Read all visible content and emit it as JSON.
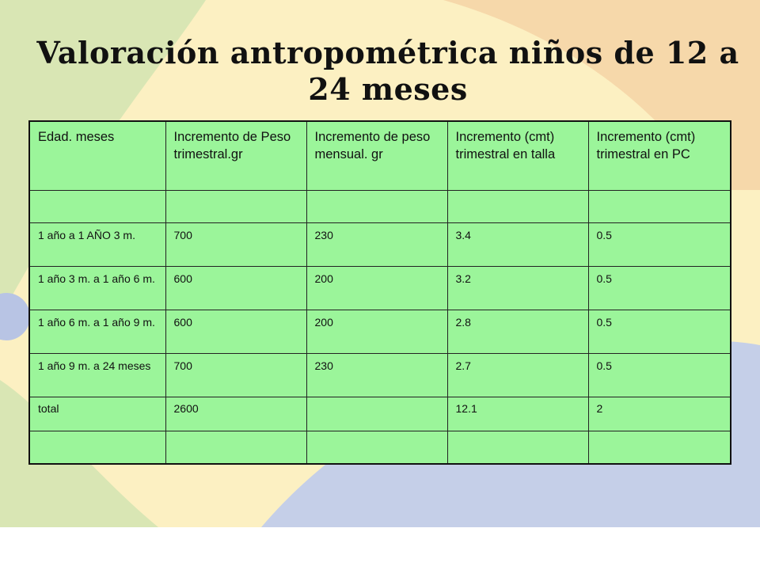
{
  "slide": {
    "title": "Valoración antropométrica niños de 12 a 24 meses"
  },
  "table": {
    "headers": [
      "Edad. meses",
      "Incremento de Peso trimestral.gr",
      "Incremento de peso mensual. gr",
      "Incremento (cmt) trimestral en talla",
      "Incremento (cmt) trimestral en PC"
    ],
    "rows": [
      [
        "",
        "",
        "",
        "",
        ""
      ],
      [
        "1 año a 1 AÑO 3 m.",
        "700",
        "230",
        "3.4",
        "0.5"
      ],
      [
        "1 año 3 m. a 1 año 6 m.",
        "600",
        "200",
        "3.2",
        "0.5"
      ],
      [
        "1 año 6 m. a 1 año 9 m.",
        "600",
        "200",
        "2.8",
        "0.5"
      ],
      [
        "1 año 9 m. a  24 meses",
        "700",
        "230",
        "2.7",
        "0.5"
      ],
      [
        "total",
        "2600",
        "",
        "12.1",
        "2"
      ],
      [
        "",
        "",
        "",
        "",
        ""
      ]
    ]
  },
  "colors": {
    "background": "#fcf0c2",
    "table_fill": "#9bf59a",
    "decor_green": "#d9e6b4",
    "decor_blue": "#c5cfe8",
    "decor_orange": "#f3cda0"
  }
}
